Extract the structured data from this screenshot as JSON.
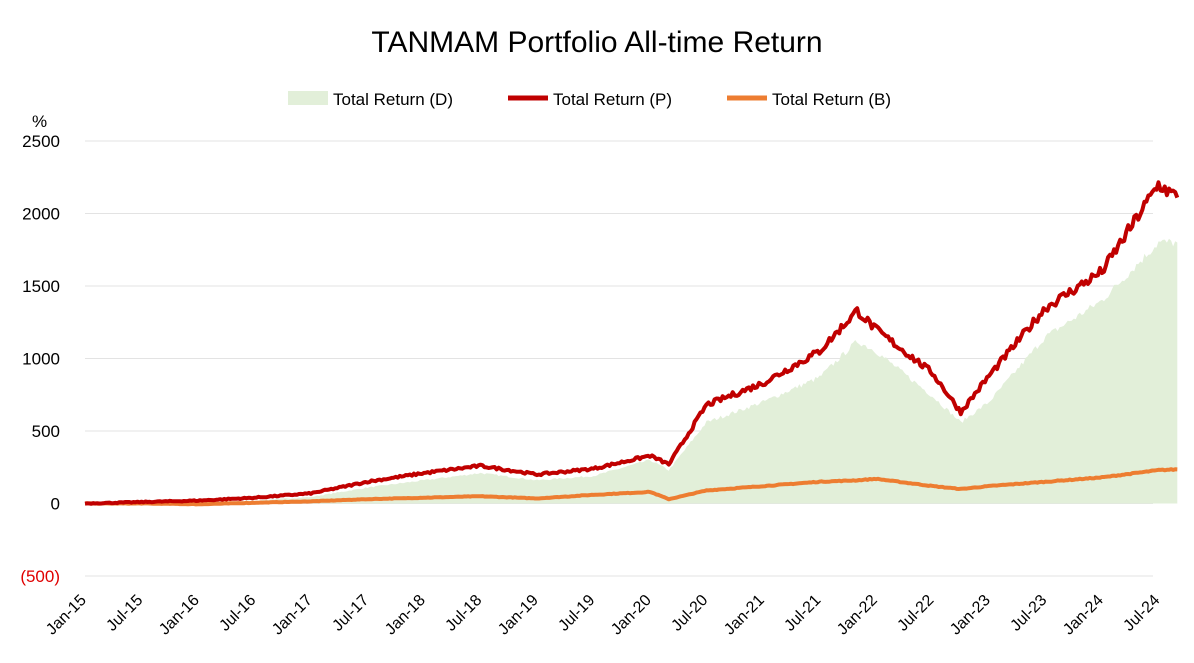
{
  "chart_data": {
    "type": "line",
    "title": "TANMAM Portfolio All-time Return",
    "y_unit_label": "%",
    "ylim": [
      -500,
      2500
    ],
    "yticks": [
      {
        "value": 2500,
        "label": "2500"
      },
      {
        "value": 2000,
        "label": "2000"
      },
      {
        "value": 1500,
        "label": "1500"
      },
      {
        "value": 1000,
        "label": "1000"
      },
      {
        "value": 500,
        "label": "500"
      },
      {
        "value": 0,
        "label": "0"
      },
      {
        "value": -500,
        "label": "(500)"
      }
    ],
    "x_tick_labels": [
      "Jan-15",
      "Jul-15",
      "Jan-16",
      "Jul-16",
      "Jan-17",
      "Jul-17",
      "Jan-18",
      "Jul-18",
      "Jan-19",
      "Jul-19",
      "Jan-20",
      "Jul-20",
      "Jan-21",
      "Jul-21",
      "Jan-22",
      "Jul-22",
      "Jan-23",
      "Jul-23",
      "Jan-24",
      "Jul-24"
    ],
    "grid": true,
    "legend_position": "top-center",
    "series": [
      {
        "name": "Total Return (D)",
        "style": "area",
        "color": "#e2efd9",
        "x": [
          "Jan-15",
          "Jul-15",
          "Jan-16",
          "Jul-16",
          "Jan-17",
          "Jul-17",
          "Jan-18",
          "Jul-18",
          "Jan-19",
          "Jul-19",
          "Jan-20",
          "Mar-20",
          "Jul-20",
          "Jan-21",
          "Jul-21",
          "Nov-21",
          "Jan-22",
          "Jul-22",
          "Oct-22",
          "Jan-23",
          "Jul-23",
          "Jan-24",
          "Jul-24",
          "Sep-24"
        ],
        "values": [
          0,
          5,
          8,
          20,
          45,
          110,
          160,
          210,
          160,
          190,
          300,
          230,
          560,
          700,
          870,
          1120,
          1050,
          740,
          560,
          700,
          1150,
          1400,
          1800,
          1800
        ]
      },
      {
        "name": "Total Return (P)",
        "style": "line",
        "color": "#c00000",
        "x": [
          "Jan-15",
          "Jul-15",
          "Jan-16",
          "Jul-16",
          "Jan-17",
          "Jul-17",
          "Jan-18",
          "Jul-18",
          "Jan-19",
          "Jul-19",
          "Jan-20",
          "Mar-20",
          "Jul-20",
          "Jan-21",
          "Jul-21",
          "Nov-21",
          "Jan-22",
          "Jul-22",
          "Oct-22",
          "Jan-23",
          "Jul-23",
          "Jan-24",
          "Jul-24",
          "Sep-24"
        ],
        "values": [
          0,
          10,
          20,
          40,
          70,
          150,
          210,
          260,
          200,
          240,
          330,
          270,
          680,
          830,
          1050,
          1330,
          1200,
          900,
          630,
          880,
          1350,
          1600,
          2200,
          2110
        ]
      },
      {
        "name": "Total Return (B)",
        "style": "line",
        "color": "#ed7d31",
        "x": [
          "Jan-15",
          "Jul-15",
          "Jan-16",
          "Jul-16",
          "Jan-17",
          "Jul-17",
          "Jan-18",
          "Jul-18",
          "Jan-19",
          "Jul-19",
          "Jan-20",
          "Mar-20",
          "Jul-20",
          "Jan-21",
          "Jul-21",
          "Nov-21",
          "Jan-22",
          "Jul-22",
          "Oct-22",
          "Jan-23",
          "Jul-23",
          "Jan-24",
          "Jul-24",
          "Sep-24"
        ],
        "values": [
          0,
          0,
          -5,
          5,
          15,
          30,
          40,
          50,
          35,
          60,
          80,
          30,
          90,
          120,
          150,
          160,
          170,
          120,
          100,
          120,
          150,
          180,
          230,
          235
        ]
      }
    ]
  }
}
